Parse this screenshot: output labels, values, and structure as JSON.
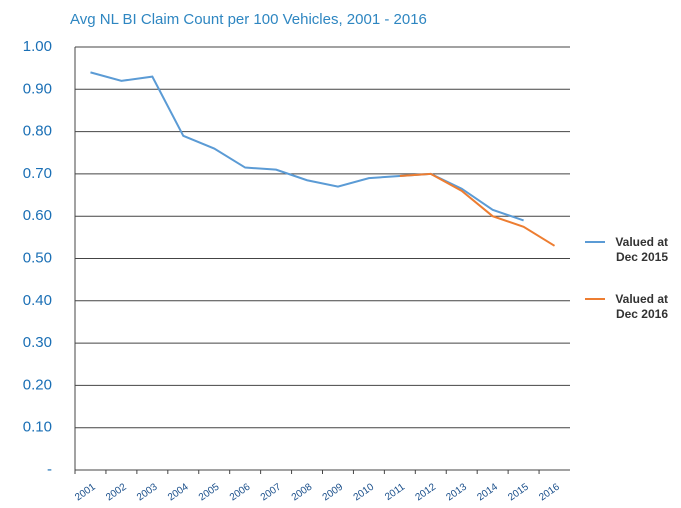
{
  "chart_data": {
    "type": "line",
    "title": "Avg NL BI Claim Count per 100 Vehicles, 2001 - 2016",
    "categories": [
      "2001",
      "2002",
      "2003",
      "2004",
      "2005",
      "2006",
      "2007",
      "2008",
      "2009",
      "2010",
      "2011",
      "2012",
      "2013",
      "2014",
      "2015",
      "2016"
    ],
    "series": [
      {
        "name": "Valued at Dec 2015",
        "color": "#5b9bd5",
        "values": [
          0.94,
          0.92,
          0.93,
          0.79,
          0.76,
          0.715,
          0.71,
          0.685,
          0.67,
          0.69,
          0.695,
          0.7,
          0.665,
          0.615,
          0.59,
          null
        ]
      },
      {
        "name": "Valued at Dec 2016",
        "color": "#ed7d31",
        "values": [
          null,
          null,
          null,
          null,
          null,
          null,
          null,
          null,
          null,
          null,
          0.695,
          0.7,
          0.66,
          0.6,
          0.575,
          0.53
        ]
      }
    ],
    "ylim": [
      0,
      1
    ],
    "yticks": [
      {
        "value": 0,
        "label": "-"
      },
      {
        "value": 0.1,
        "label": "0.10"
      },
      {
        "value": 0.2,
        "label": "0.20"
      },
      {
        "value": 0.3,
        "label": "0.30"
      },
      {
        "value": 0.4,
        "label": "0.40"
      },
      {
        "value": 0.5,
        "label": "0.50"
      },
      {
        "value": 0.6,
        "label": "0.60"
      },
      {
        "value": 0.7,
        "label": "0.70"
      },
      {
        "value": 0.8,
        "label": "0.80"
      },
      {
        "value": 0.9,
        "label": "0.90"
      },
      {
        "value": 1,
        "label": "1.00"
      }
    ],
    "grid": true,
    "legend": "right"
  }
}
